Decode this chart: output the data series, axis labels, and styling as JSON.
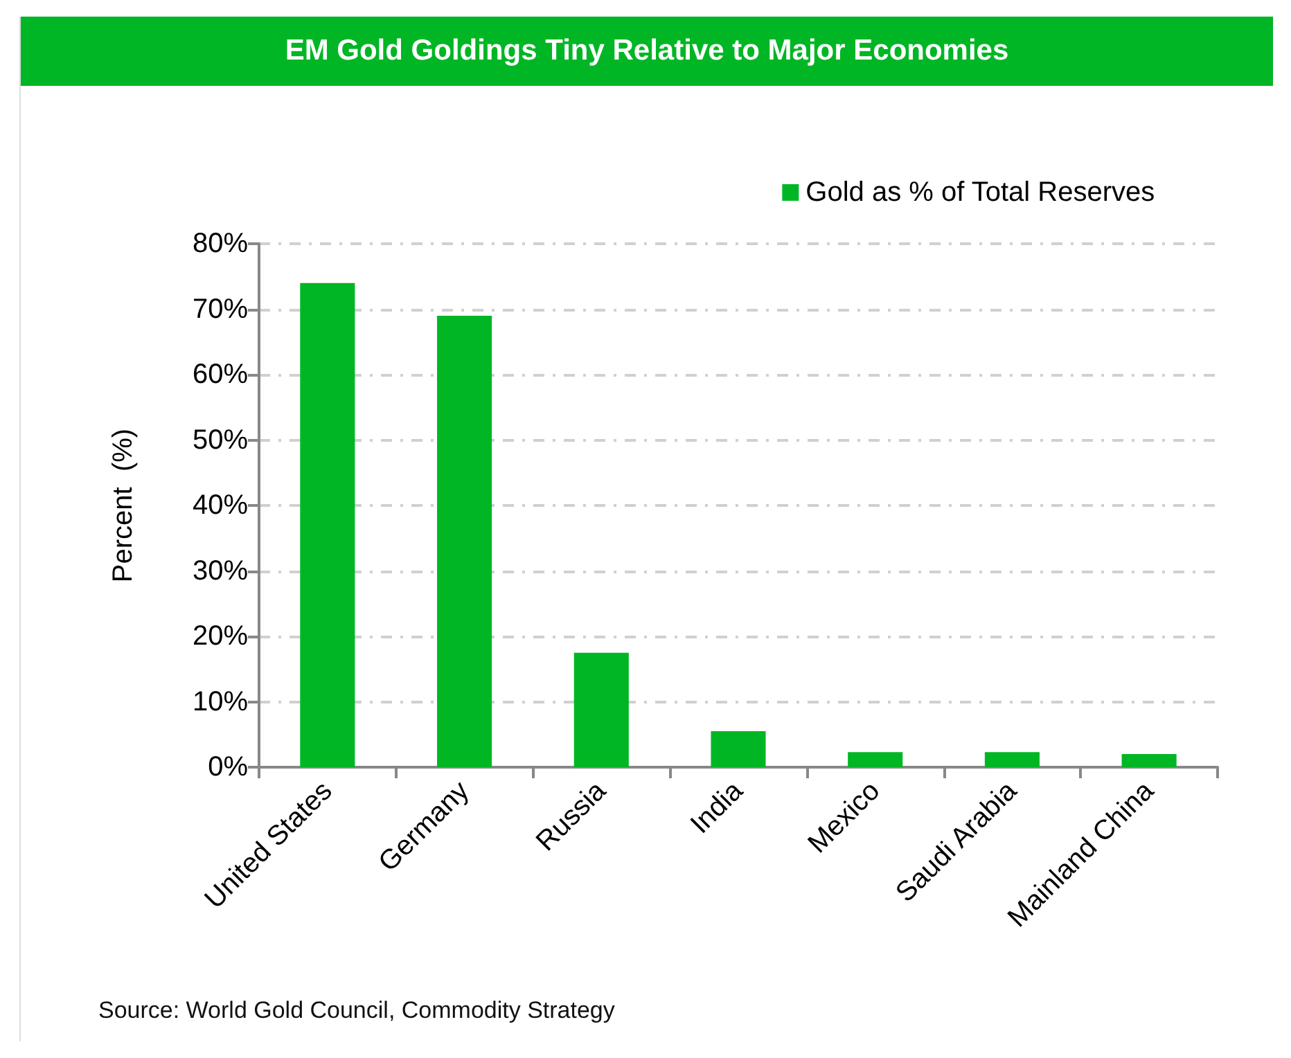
{
  "chart_data": {
    "type": "bar",
    "title": "EM Gold Goldings Tiny Relative to Major Economies",
    "ylabel": "Percent  (%)",
    "categories": [
      "United States",
      "Germany",
      "Russia",
      "India",
      "Mexico",
      "Saudi Arabia",
      "Mainland China"
    ],
    "series": [
      {
        "name": "Gold as % of Total Reserves",
        "color": "#00b624",
        "values": [
          74,
          69,
          17.5,
          5.5,
          2.3,
          2.3,
          2.0
        ]
      }
    ],
    "ylim": [
      0,
      80
    ],
    "yticks": [
      {
        "value": 0,
        "label": "0%"
      },
      {
        "value": 10,
        "label": "10%"
      },
      {
        "value": 20,
        "label": "20%"
      },
      {
        "value": 30,
        "label": "30%"
      },
      {
        "value": 40,
        "label": "40%"
      },
      {
        "value": 50,
        "label": "50%"
      },
      {
        "value": 60,
        "label": "60%"
      },
      {
        "value": 70,
        "label": "70%"
      },
      {
        "value": 80,
        "label": "80%"
      }
    ],
    "grid": "y",
    "legend": "top right",
    "annotations": [
      "Source: World Gold Council, Commodity Strategy"
    ]
  }
}
